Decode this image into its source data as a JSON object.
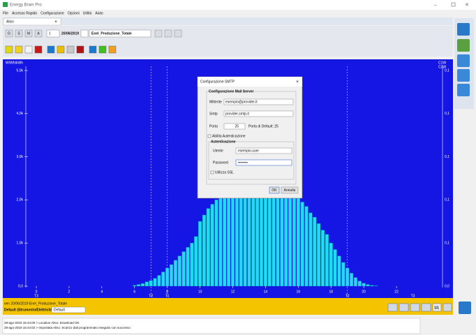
{
  "window": {
    "title": "Energy Brain Pro",
    "menu": [
      "File",
      "Accesso Rapido",
      "Configurazione",
      "Opzioni",
      "Utilità",
      "Aiuto"
    ],
    "tab": "Aliso"
  },
  "toolbar": {
    "period_buttons": [
      "G",
      "S",
      "M",
      "A"
    ],
    "count": "1",
    "date": "20/06/2019",
    "source": "Enel_Produzione_Totale"
  },
  "chart_data": {
    "type": "bar",
    "y_unit_label": "W/Wh/kWh",
    "y2_unit_labels": [
      "C1W",
      "C2W"
    ],
    "color": "#1fdcf2",
    "xlim": [
      0,
      24
    ],
    "xticks": [
      0,
      2,
      4,
      6,
      8,
      10,
      12,
      14,
      16,
      18,
      20,
      22
    ],
    "ylim": [
      0,
      5000
    ],
    "yticks": [
      {
        "value": 0,
        "label": "0,0"
      },
      {
        "value": 1000,
        "label": "1,0k"
      },
      {
        "value": 2000,
        "label": "2,0k"
      },
      {
        "value": 3000,
        "label": "3,0k"
      },
      {
        "value": 4000,
        "label": "4,0k"
      },
      {
        "value": 5000,
        "label": "5,0k"
      }
    ],
    "y2_tick_labels": [
      "0,0",
      "0,1",
      "0,1",
      "0,1",
      "0,1",
      "0,1"
    ],
    "bands": [
      {
        "text": "T3",
        "x": 0
      },
      {
        "text": "T2",
        "x": 7
      },
      {
        "text": "T1",
        "x": 8
      },
      {
        "text": "T2",
        "x": 19
      },
      {
        "text": "T3",
        "x": 23
      }
    ],
    "x": [
      6,
      6.25,
      6.5,
      6.75,
      7,
      7.25,
      7.5,
      7.75,
      8,
      8.25,
      8.5,
      8.75,
      9,
      9.25,
      9.5,
      9.75,
      10,
      10.25,
      10.5,
      10.75,
      11,
      11.25,
      11.5,
      11.75,
      12,
      12.25,
      12.5,
      12.75,
      13,
      13.25,
      13.5,
      13.75,
      14,
      14.25,
      14.5,
      14.75,
      15,
      15.25,
      15.5,
      15.75,
      16,
      16.25,
      16.5,
      16.75,
      17,
      17.25,
      17.5,
      17.75,
      18,
      18.25,
      18.5,
      18.75,
      19,
      19.25,
      19.5,
      19.75,
      20,
      20.25,
      20.5,
      20.75
    ],
    "values": [
      20,
      40,
      60,
      100,
      130,
      180,
      250,
      330,
      420,
      500,
      600,
      700,
      800,
      900,
      1000,
      1150,
      1500,
      1650,
      1800,
      1900,
      2000,
      2100,
      2300,
      2500,
      2700,
      2900,
      3100,
      3200,
      3250,
      3200,
      3150,
      3050,
      2950,
      2850,
      2700,
      2550,
      2400,
      2300,
      2200,
      2100,
      2050,
      1950,
      1850,
      1700,
      1600,
      1450,
      1300,
      1200,
      1000,
      850,
      700,
      550,
      420,
      300,
      200,
      120,
      70,
      40,
      20,
      10
    ]
  },
  "status": {
    "caption": "ven 20/06/2019 Enel_Produzione_Totale",
    "profile_label": "Default (Strumento/Elettricità)",
    "profile": "Default",
    "page": "1/1"
  },
  "log": [
    "28-ago-2019 15:44:00 > Location Aliso: Download OK",
    "28-ago-2019 15:44:02 > Impostata Aliso: Scarico dati programmato eseguito con successo"
  ],
  "dialog": {
    "title": "Configurazione SMTP",
    "server_group": "Configurazione Mail Server",
    "sender_label": "Mittente",
    "sender": "esempio@provider.it",
    "smtp_label": "Smtp",
    "smtp": "provider.smtp.it",
    "port_label": "Porta",
    "port": "25",
    "port_hint": "Porta di Default: 25",
    "auth_check": "Abilita Autenticazione",
    "auth_group": "Autenticazione",
    "user_label": "Utente",
    "user": "esempio.user",
    "password_label": "Password",
    "password": "••••••••",
    "ssl_check": "Utilizza SSL",
    "ok": "OK",
    "cancel": "Annulla"
  }
}
